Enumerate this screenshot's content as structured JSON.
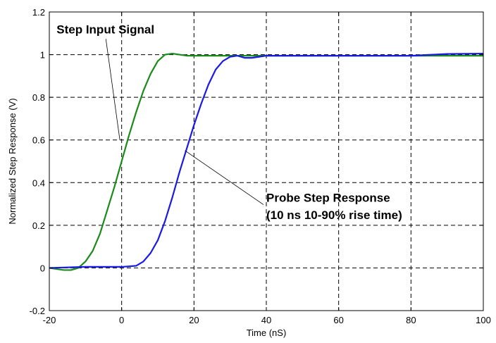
{
  "chart_data": {
    "type": "line",
    "xlabel": "Time (nS)",
    "ylabel": "Normalized Step Response (V)",
    "xlim": [
      -20,
      100
    ],
    "ylim": [
      -0.2,
      1.2
    ],
    "xticks": [
      -20,
      0,
      20,
      40,
      60,
      80,
      100
    ],
    "yticks": [
      -0.2,
      0,
      0.2,
      0.4,
      0.6,
      0.8,
      1,
      1.2
    ],
    "xtick_labels": [
      "-20",
      "0",
      "20",
      "40",
      "60",
      "80",
      "100"
    ],
    "ytick_labels": [
      "-0.2",
      "0",
      "0.2",
      "0.4",
      "0.6",
      "0.8",
      "1",
      "1.2"
    ],
    "grid": true,
    "series": [
      {
        "color": "#1a8a1a",
        "x": [
          -20,
          -16,
          -14,
          -12,
          -10,
          -8,
          -6,
          -4,
          -2,
          0,
          2,
          4,
          6,
          8,
          10,
          12,
          14,
          16,
          18,
          20,
          30,
          40,
          60,
          80,
          100
        ],
        "y": [
          0.0,
          -0.01,
          -0.01,
          0.0,
          0.03,
          0.08,
          0.16,
          0.27,
          0.38,
          0.5,
          0.62,
          0.73,
          0.83,
          0.91,
          0.97,
          1.0,
          1.005,
          1.0,
          0.995,
          0.995,
          0.995,
          0.995,
          0.995,
          0.995,
          0.995
        ]
      },
      {
        "color": "#1a1ae6",
        "x": [
          -20,
          -10,
          0,
          4,
          6,
          8,
          10,
          12,
          14,
          16,
          18,
          20,
          22,
          24,
          26,
          28,
          30,
          32,
          34,
          36,
          38,
          40,
          50,
          60,
          80,
          90,
          100
        ],
        "y": [
          0.0,
          0.005,
          0.005,
          0.01,
          0.03,
          0.07,
          0.13,
          0.22,
          0.33,
          0.45,
          0.56,
          0.67,
          0.77,
          0.86,
          0.93,
          0.97,
          0.99,
          0.995,
          0.985,
          0.985,
          0.99,
          0.995,
          0.995,
          0.995,
          0.995,
          1.003,
          1.005
        ]
      }
    ],
    "annotations": [
      {
        "text": "Step Input Signal",
        "x": -18,
        "y": 1.1,
        "arrow_to": [
          -0.5,
          0.6
        ]
      },
      {
        "text": "Probe Step Response",
        "x": 40,
        "y": 0.31,
        "arrow_to": [
          17.5,
          0.55
        ]
      },
      {
        "text": "(10 ns 10-90% rise time)",
        "x": 40,
        "y": 0.23
      }
    ]
  }
}
